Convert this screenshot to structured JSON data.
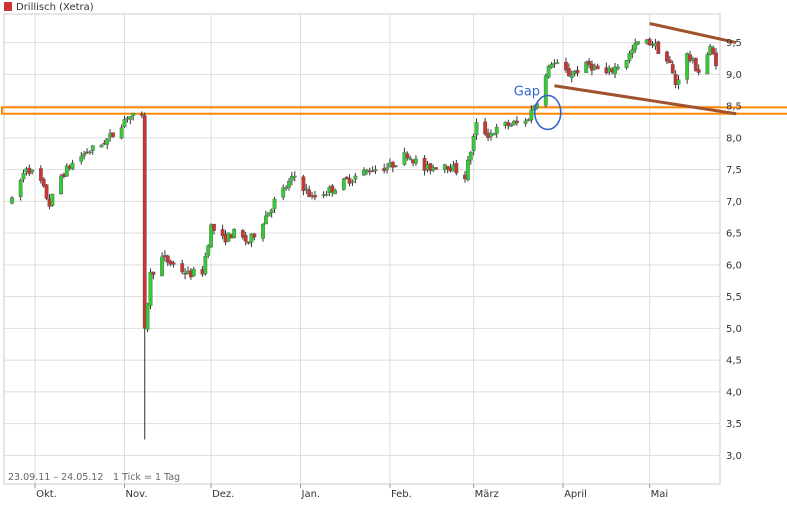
{
  "chart_data": {
    "type": "candlestick",
    "title": "Drillisch (Xetra)",
    "date_range_label": "23.09.11 – 24.05.12",
    "tick_label": "1 Tick = 1 Tag",
    "ylim": [
      2.55,
      9.95
    ],
    "y_ticks": [
      "9,5",
      "9,0",
      "8,5",
      "8,0",
      "7,5",
      "7,0",
      "6,5",
      "6,0",
      "5,5",
      "5,0",
      "4,5",
      "4,0",
      "3,5",
      "3,0"
    ],
    "y_tick_values": [
      9.5,
      9.0,
      8.5,
      8.0,
      7.5,
      7.0,
      6.5,
      6.0,
      5.5,
      5.0,
      4.5,
      4.0,
      3.5,
      3.0
    ],
    "x_start": "2011-09-23",
    "x_end": "2012-05-24",
    "month_ticks": [
      {
        "label": "Okt.",
        "date": "2011-10-01"
      },
      {
        "label": "Nov.",
        "date": "2011-11-01"
      },
      {
        "label": "Dez.",
        "date": "2011-12-01"
      },
      {
        "label": "Jan.",
        "date": "2012-01-01"
      },
      {
        "label": "Feb.",
        "date": "2012-02-01"
      },
      {
        "label": "März",
        "date": "2012-03-01"
      },
      {
        "label": "April",
        "date": "2012-04-01"
      },
      {
        "label": "Mai",
        "date": "2012-05-01"
      }
    ],
    "colors": {
      "up": "#33cc33",
      "down": "#cc3333",
      "wick": "#333333",
      "grid": "#dddddd",
      "band": "#ff8800",
      "trend": "#a0522d",
      "annotation": "#3366cc"
    },
    "price_path": [
      [
        "2011-09-23",
        7.0
      ],
      [
        "2011-09-28",
        7.55
      ],
      [
        "2011-10-03",
        7.3
      ],
      [
        "2011-10-06",
        6.95
      ],
      [
        "2011-10-10",
        7.4
      ],
      [
        "2011-10-14",
        7.6
      ],
      [
        "2011-10-18",
        7.75
      ],
      [
        "2011-10-24",
        7.9
      ],
      [
        "2011-10-28",
        8.05
      ],
      [
        "2011-11-02",
        8.35
      ],
      [
        "2011-11-07",
        8.3
      ],
      [
        "2011-11-08",
        5.0
      ],
      [
        "2011-11-10",
        5.85
      ],
      [
        "2011-11-14",
        6.1
      ],
      [
        "2011-11-18",
        6.0
      ],
      [
        "2011-11-23",
        5.85
      ],
      [
        "2011-11-28",
        5.9
      ],
      [
        "2011-12-01",
        6.6
      ],
      [
        "2011-12-05",
        6.4
      ],
      [
        "2011-12-09",
        6.5
      ],
      [
        "2011-12-14",
        6.35
      ],
      [
        "2011-12-19",
        6.7
      ],
      [
        "2011-12-23",
        7.0
      ],
      [
        "2011-12-30",
        7.4
      ],
      [
        "2012-01-05",
        7.05
      ],
      [
        "2012-01-12",
        7.2
      ],
      [
        "2012-01-18",
        7.35
      ],
      [
        "2012-01-25",
        7.5
      ],
      [
        "2012-02-01",
        7.55
      ],
      [
        "2012-02-07",
        7.75
      ],
      [
        "2012-02-13",
        7.5
      ],
      [
        "2012-02-20",
        7.6
      ],
      [
        "2012-02-27",
        7.4
      ],
      [
        "2012-03-02",
        8.2
      ],
      [
        "2012-03-06",
        8.05
      ],
      [
        "2012-03-12",
        8.2
      ],
      [
        "2012-03-19",
        8.25
      ],
      [
        "2012-03-23",
        8.6
      ],
      [
        "2012-03-28",
        9.2
      ],
      [
        "2012-04-03",
        9.0
      ],
      [
        "2012-04-10",
        9.15
      ],
      [
        "2012-04-16",
        9.0
      ],
      [
        "2012-04-23",
        9.25
      ],
      [
        "2012-04-27",
        9.5
      ],
      [
        "2012-05-02",
        9.5
      ],
      [
        "2012-05-08",
        9.15
      ],
      [
        "2012-05-10",
        8.85
      ],
      [
        "2012-05-14",
        9.3
      ],
      [
        "2012-05-18",
        9.05
      ],
      [
        "2012-05-22",
        9.4
      ],
      [
        "2012-05-24",
        9.2
      ]
    ],
    "extreme_candles": [
      {
        "date": "2011-11-08",
        "open": 8.35,
        "close": 5.0,
        "high": 8.4,
        "low": 3.25
      }
    ],
    "annotations": [
      {
        "type": "horizontal_band",
        "y": [
          8.38,
          8.48
        ],
        "from": "2011-09-23",
        "to": "2012-05-24"
      },
      {
        "type": "text",
        "text": "Gap",
        "date": "2012-03-26",
        "y": 8.6
      },
      {
        "type": "ellipse",
        "date": "2012-03-26",
        "y": 8.4
      },
      {
        "type": "trendline",
        "points": [
          [
            "2012-05-01",
            9.8
          ],
          [
            "2012-05-31",
            9.5
          ]
        ]
      },
      {
        "type": "trendline",
        "points": [
          [
            "2012-03-29",
            8.82
          ],
          [
            "2012-05-31",
            8.38
          ]
        ]
      }
    ]
  }
}
